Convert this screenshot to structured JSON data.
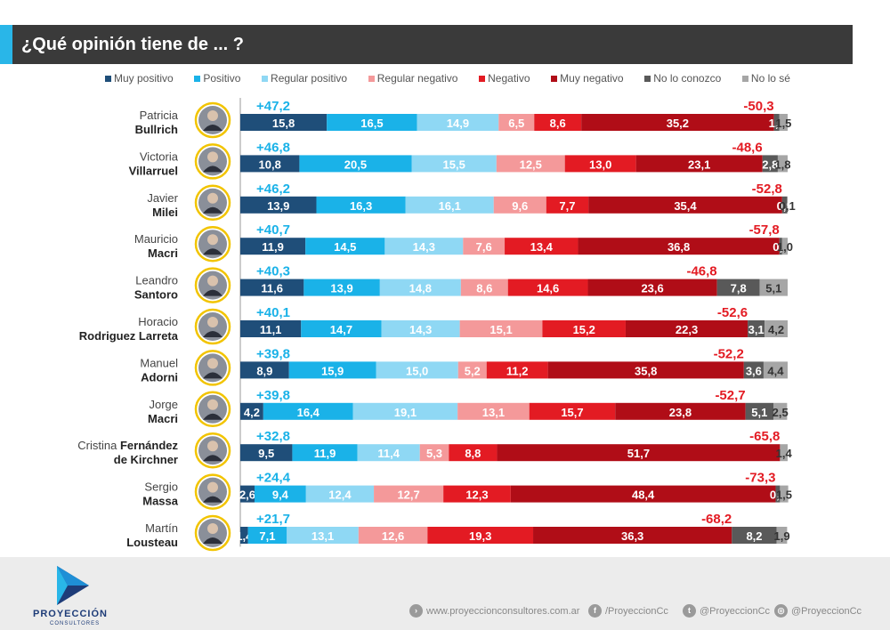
{
  "header": {
    "title": "¿Qué opinión tiene de ... ?"
  },
  "legend": [
    {
      "label": "Muy positivo",
      "color": "#1f4e79"
    },
    {
      "label": "Positivo",
      "color": "#1ab2e8"
    },
    {
      "label": "Regular positivo",
      "color": "#8fd8f4"
    },
    {
      "label": "Regular negativo",
      "color": "#f4999a"
    },
    {
      "label": "Negativo",
      "color": "#e31b23"
    },
    {
      "label": "Muy negativo",
      "color": "#b00d17"
    },
    {
      "label": "No lo conozco",
      "color": "#595959"
    },
    {
      "label": "No lo sé",
      "color": "#a6a6a6"
    }
  ],
  "chart_data": {
    "type": "bar",
    "orientation": "horizontal",
    "stacked": true,
    "title": "¿Qué opinión tiene de ... ?",
    "series_names": [
      "Muy positivo",
      "Positivo",
      "Regular positivo",
      "Regular negativo",
      "Negativo",
      "Muy negativo",
      "No lo conozco",
      "No lo sé"
    ],
    "xlim": [
      0,
      100
    ],
    "rows": [
      {
        "first": "Patricia",
        "last": "Bullrich",
        "positive": "+47,2",
        "negative": "-50,3",
        "values": [
          15.8,
          16.5,
          14.9,
          6.5,
          8.6,
          35.2,
          1.0,
          1.5
        ],
        "labels": [
          "15,8",
          "16,5",
          "14,9",
          "6,5",
          "8,6",
          "35,2",
          "1,0",
          "1,5"
        ]
      },
      {
        "first": "Victoria",
        "last": "Villarruel",
        "positive": "+46,8",
        "negative": "-48,6",
        "values": [
          10.8,
          20.5,
          15.5,
          12.5,
          13.0,
          23.1,
          2.8,
          1.8
        ],
        "labels": [
          "10,8",
          "20,5",
          "15,5",
          "12,5",
          "13,0",
          "23,1",
          "2,8",
          "1,8"
        ]
      },
      {
        "first": "Javier",
        "last": "Milei",
        "positive": "+46,2",
        "negative": "-52,8",
        "values": [
          13.9,
          16.3,
          16.1,
          9.6,
          7.7,
          35.4,
          0.9,
          0.1
        ],
        "labels": [
          "13,9",
          "16,3",
          "16,1",
          "9,6",
          "7,7",
          "35,4",
          "0,9",
          "0,1"
        ]
      },
      {
        "first": "Mauricio",
        "last": "Macri",
        "positive": "+40,7",
        "negative": "-57,8",
        "values": [
          11.9,
          14.5,
          14.3,
          7.6,
          13.4,
          36.8,
          0.5,
          1.0
        ],
        "labels": [
          "11,9",
          "14,5",
          "14,3",
          "7,6",
          "13,4",
          "36,8",
          "0,5",
          "1,0"
        ]
      },
      {
        "first": "Leandro",
        "last": "Santoro",
        "positive": "+40,3",
        "negative": "-46,8",
        "values": [
          11.6,
          13.9,
          14.8,
          8.6,
          14.6,
          23.6,
          7.8,
          5.1
        ],
        "labels": [
          "11,6",
          "13,9",
          "14,8",
          "8,6",
          "14,6",
          "23,6",
          "7,8",
          "5,1"
        ]
      },
      {
        "first": "Horacio",
        "last": "Rodriguez Larreta",
        "positive": "+40,1",
        "negative": "-52,6",
        "values": [
          11.1,
          14.7,
          14.3,
          15.1,
          15.2,
          22.3,
          3.1,
          4.2
        ],
        "labels": [
          "11,1",
          "14,7",
          "14,3",
          "15,1",
          "15,2",
          "22,3",
          "3,1",
          "4,2"
        ]
      },
      {
        "first": "Manuel",
        "last": "Adorni",
        "positive": "+39,8",
        "negative": "-52,2",
        "values": [
          8.9,
          15.9,
          15.0,
          5.2,
          11.2,
          35.8,
          3.6,
          4.4
        ],
        "labels": [
          "8,9",
          "15,9",
          "15,0",
          "5,2",
          "11,2",
          "35,8",
          "3,6",
          "4,4"
        ]
      },
      {
        "first": "Jorge",
        "last": "Macri",
        "positive": "+39,8",
        "negative": "-52,7",
        "values": [
          4.2,
          16.4,
          19.1,
          13.1,
          15.7,
          23.8,
          5.1,
          2.5
        ],
        "labels": [
          "4,2",
          "16,4",
          "19,1",
          "13,1",
          "15,7",
          "23,8",
          "5,1",
          "2,5"
        ]
      },
      {
        "first": "Cristina",
        "last": "Fernández de Kirchner",
        "name_line1_bold": "Fernández",
        "name_line2": "de Kirchner",
        "positive": "+32,8",
        "negative": "-65,8",
        "values": [
          9.5,
          11.9,
          11.4,
          5.3,
          8.8,
          51.7,
          0.0,
          1.4
        ],
        "labels": [
          "9,5",
          "11,9",
          "11,4",
          "5,3",
          "8,8",
          "51,7",
          "",
          "1,4"
        ]
      },
      {
        "first": "Sergio",
        "last": "Massa",
        "positive": "+24,4",
        "negative": "-73,3",
        "values": [
          2.6,
          9.4,
          12.4,
          12.7,
          12.3,
          48.4,
          0.8,
          1.5
        ],
        "labels": [
          "2,6",
          "9,4",
          "12,4",
          "12,7",
          "12,3",
          "48,4",
          "0,8",
          "1,5"
        ]
      },
      {
        "first": "Martín",
        "last": "Lousteau",
        "positive": "+21,7",
        "negative": "-68,2",
        "values": [
          1.4,
          7.1,
          13.1,
          12.6,
          19.3,
          36.3,
          8.2,
          1.9
        ],
        "labels": [
          "1,4",
          "7,1",
          "13,1",
          "12,6",
          "19,3",
          "36,3",
          "8,2",
          "1,9"
        ]
      }
    ]
  },
  "footer": {
    "brand": "PROYECCIÓN",
    "brand_sub": "CONSULTORES",
    "website": "www.proyeccionconsultores.com.ar",
    "facebook": "/ProyeccionCc",
    "twitter": "@ProyeccionCc",
    "instagram": "@ProyeccionCc"
  }
}
